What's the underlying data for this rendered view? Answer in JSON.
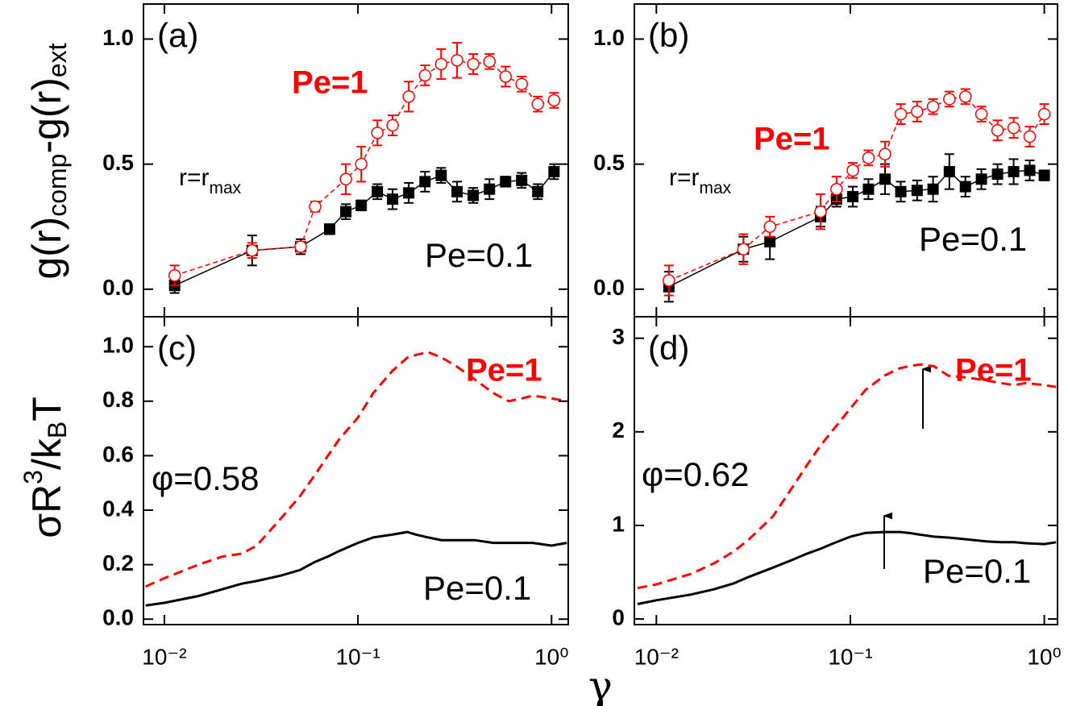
{
  "chart_data": [
    {
      "type": "line",
      "panel_label": "(a)",
      "note": "r=r",
      "note_sub": "max",
      "ylabel": [
        "g(r)",
        "comp",
        "-g(r)",
        "ext"
      ],
      "xlim": [
        0.0078,
        1.22
      ],
      "xticks": [
        0.01,
        0.1,
        1
      ],
      "xscale": "log",
      "ylim": [
        -0.11,
        1.14
      ],
      "yticks": [
        {
          "value": 0,
          "label": "0.0"
        },
        {
          "value": 0.5,
          "label": "0.5"
        },
        {
          "value": 1.0,
          "label": "1.0"
        }
      ],
      "series": [
        {
          "name": "Pe=0.1",
          "color": "#000000",
          "marker": "square",
          "dash": false,
          "x": [
            0.0113,
            0.0284,
            0.0506,
            0.0714,
            0.0866,
            0.104,
            0.126,
            0.151,
            0.183,
            0.222,
            0.269,
            0.325,
            0.394,
            0.478,
            0.579,
            0.701,
            0.849,
            1.03
          ],
          "values": [
            0.015,
            0.155,
            0.17,
            0.24,
            0.31,
            0.335,
            0.39,
            0.36,
            0.385,
            0.43,
            0.455,
            0.39,
            0.375,
            0.4,
            0.43,
            0.435,
            0.39,
            0.47
          ],
          "errors": [
            0.03,
            0.06,
            0.03,
            0.02,
            0.03,
            0.02,
            0.03,
            0.04,
            0.04,
            0.04,
            0.03,
            0.04,
            0.03,
            0.04,
            0.02,
            0.03,
            0.03,
            0.03
          ]
        },
        {
          "name": "Pe=1",
          "color": "#ff0000",
          "marker": "circle-open",
          "dash": true,
          "x": [
            0.0113,
            0.0284,
            0.0506,
            0.0601,
            0.0866,
            0.104,
            0.126,
            0.151,
            0.183,
            0.222,
            0.269,
            0.325,
            0.394,
            0.478,
            0.579,
            0.701,
            0.849,
            1.03
          ],
          "values": [
            0.055,
            0.155,
            0.17,
            0.33,
            0.44,
            0.5,
            0.625,
            0.655,
            0.77,
            0.855,
            0.9,
            0.915,
            0.9,
            0.91,
            0.85,
            0.82,
            0.74,
            0.755
          ],
          "errors": [
            0.04,
            0.03,
            0.02,
            0.02,
            0.06,
            0.07,
            0.05,
            0.04,
            0.06,
            0.04,
            0.06,
            0.07,
            0.04,
            0.03,
            0.04,
            0.03,
            0.03,
            0.03
          ]
        }
      ]
    },
    {
      "type": "line",
      "panel_label": "(b)",
      "note": "r=r",
      "note_sub": "max",
      "xlim": [
        0.0077,
        1.17
      ],
      "xticks": [
        0.01,
        0.1,
        1
      ],
      "xscale": "log",
      "ylim": [
        -0.11,
        1.14
      ],
      "yticks": [
        {
          "value": 0,
          "label": "0.0"
        },
        {
          "value": 0.5,
          "label": "0.5"
        },
        {
          "value": 1.0,
          "label": "1.0"
        }
      ],
      "series": [
        {
          "name": "Pe=0.1",
          "color": "#000000",
          "marker": "square",
          "dash": false,
          "x": [
            0.0116,
            0.0281,
            0.0385,
            0.0702,
            0.0849,
            0.103,
            0.124,
            0.151,
            0.182,
            0.221,
            0.267,
            0.324,
            0.392,
            0.474,
            0.574,
            0.695,
            0.841,
            1.0
          ],
          "values": [
            0.01,
            0.16,
            0.19,
            0.29,
            0.36,
            0.37,
            0.4,
            0.44,
            0.39,
            0.395,
            0.4,
            0.47,
            0.41,
            0.44,
            0.46,
            0.47,
            0.475,
            0.455
          ],
          "errors": [
            0.06,
            0.05,
            0.07,
            0.04,
            0.03,
            0.04,
            0.04,
            0.06,
            0.04,
            0.04,
            0.05,
            0.07,
            0.04,
            0.04,
            0.04,
            0.05,
            0.04,
            0.02
          ]
        },
        {
          "name": "Pe=1",
          "color": "#ff0000",
          "marker": "circle-open",
          "dash": true,
          "x": [
            0.0116,
            0.0281,
            0.0385,
            0.0702,
            0.0849,
            0.103,
            0.124,
            0.151,
            0.182,
            0.221,
            0.267,
            0.324,
            0.392,
            0.474,
            0.574,
            0.695,
            0.841,
            1.0
          ],
          "values": [
            0.035,
            0.16,
            0.25,
            0.31,
            0.4,
            0.475,
            0.525,
            0.54,
            0.7,
            0.71,
            0.73,
            0.76,
            0.77,
            0.7,
            0.635,
            0.645,
            0.61,
            0.7
          ],
          "errors": [
            0.06,
            0.06,
            0.04,
            0.07,
            0.05,
            0.03,
            0.03,
            0.05,
            0.04,
            0.04,
            0.03,
            0.03,
            0.03,
            0.03,
            0.04,
            0.04,
            0.04,
            0.04
          ]
        }
      ]
    },
    {
      "type": "line",
      "panel_label": "(c)",
      "note": "φ=0.58",
      "ylabel": [
        "σR",
        "3",
        "/k",
        "B",
        "T"
      ],
      "xlabel": "γ",
      "xlim": [
        0.0078,
        1.22
      ],
      "xscale": "log",
      "xticks": [
        {
          "value": 0.01,
          "label": "10⁻²"
        },
        {
          "value": 0.1,
          "label": "10⁻¹"
        },
        {
          "value": 1,
          "label": "10⁰"
        }
      ],
      "ylim": [
        -0.02,
        1.11
      ],
      "yticks": [
        {
          "value": 0,
          "label": "0.0"
        },
        0.2,
        0.4,
        0.6,
        0.8,
        {
          "value": 1.0,
          "label": "1.0"
        }
      ],
      "series": [
        {
          "name": "Pe=0.1",
          "color": "#000000",
          "dash": false,
          "x": [
            0.008,
            0.01,
            0.015,
            0.02,
            0.025,
            0.03,
            0.04,
            0.05,
            0.06,
            0.07,
            0.08,
            0.1,
            0.12,
            0.15,
            0.18,
            0.2,
            0.23,
            0.27,
            0.32,
            0.4,
            0.5,
            0.6,
            0.7,
            0.8,
            1.0,
            1.2
          ],
          "values": [
            0.05,
            0.06,
            0.085,
            0.11,
            0.13,
            0.14,
            0.16,
            0.18,
            0.21,
            0.23,
            0.25,
            0.28,
            0.3,
            0.31,
            0.32,
            0.31,
            0.3,
            0.29,
            0.29,
            0.29,
            0.28,
            0.28,
            0.28,
            0.28,
            0.27,
            0.28
          ]
        },
        {
          "name": "Pe=1",
          "color": "#ff0000",
          "dash": true,
          "x": [
            0.008,
            0.01,
            0.015,
            0.02,
            0.025,
            0.03,
            0.04,
            0.05,
            0.06,
            0.07,
            0.08,
            0.1,
            0.12,
            0.15,
            0.18,
            0.2,
            0.23,
            0.27,
            0.32,
            0.4,
            0.5,
            0.6,
            0.7,
            0.8,
            1.0,
            1.2
          ],
          "values": [
            0.12,
            0.15,
            0.2,
            0.23,
            0.24,
            0.27,
            0.37,
            0.45,
            0.53,
            0.6,
            0.66,
            0.74,
            0.83,
            0.91,
            0.96,
            0.97,
            0.98,
            0.96,
            0.93,
            0.88,
            0.83,
            0.8,
            0.81,
            0.82,
            0.81,
            0.8
          ]
        }
      ]
    },
    {
      "type": "line",
      "panel_label": "(d)",
      "note": "φ=0.62",
      "xlim": [
        0.0077,
        1.17
      ],
      "xscale": "log",
      "xticks": [
        {
          "value": 0.01,
          "label": "10⁻²"
        },
        {
          "value": 0.1,
          "label": "10⁻¹"
        },
        {
          "value": 1,
          "label": "10⁰"
        }
      ],
      "ylim": [
        -0.06,
        3.23
      ],
      "yticks": [
        0,
        1,
        2,
        3
      ],
      "series": [
        {
          "name": "Pe=0.1",
          "color": "#000000",
          "dash": false,
          "x": [
            0.008,
            0.01,
            0.015,
            0.02,
            0.025,
            0.03,
            0.04,
            0.05,
            0.06,
            0.07,
            0.08,
            0.1,
            0.12,
            0.15,
            0.18,
            0.2,
            0.23,
            0.27,
            0.32,
            0.4,
            0.5,
            0.6,
            0.7,
            0.8,
            1.0,
            1.15
          ],
          "values": [
            0.16,
            0.2,
            0.26,
            0.32,
            0.38,
            0.45,
            0.55,
            0.63,
            0.7,
            0.75,
            0.8,
            0.88,
            0.92,
            0.93,
            0.93,
            0.92,
            0.9,
            0.88,
            0.87,
            0.85,
            0.83,
            0.82,
            0.82,
            0.81,
            0.8,
            0.82
          ]
        },
        {
          "name": "Pe=1",
          "color": "#ff0000",
          "dash": true,
          "x": [
            0.008,
            0.01,
            0.015,
            0.02,
            0.025,
            0.03,
            0.04,
            0.05,
            0.06,
            0.07,
            0.08,
            0.1,
            0.12,
            0.15,
            0.18,
            0.2,
            0.23,
            0.27,
            0.32,
            0.4,
            0.5,
            0.6,
            0.7,
            0.8,
            1.0,
            1.15
          ],
          "values": [
            0.33,
            0.37,
            0.48,
            0.6,
            0.72,
            0.85,
            1.1,
            1.4,
            1.65,
            1.85,
            2.0,
            2.25,
            2.45,
            2.6,
            2.68,
            2.7,
            2.72,
            2.7,
            2.6,
            2.58,
            2.55,
            2.52,
            2.5,
            2.52,
            2.5,
            2.48
          ]
        }
      ]
    }
  ]
}
